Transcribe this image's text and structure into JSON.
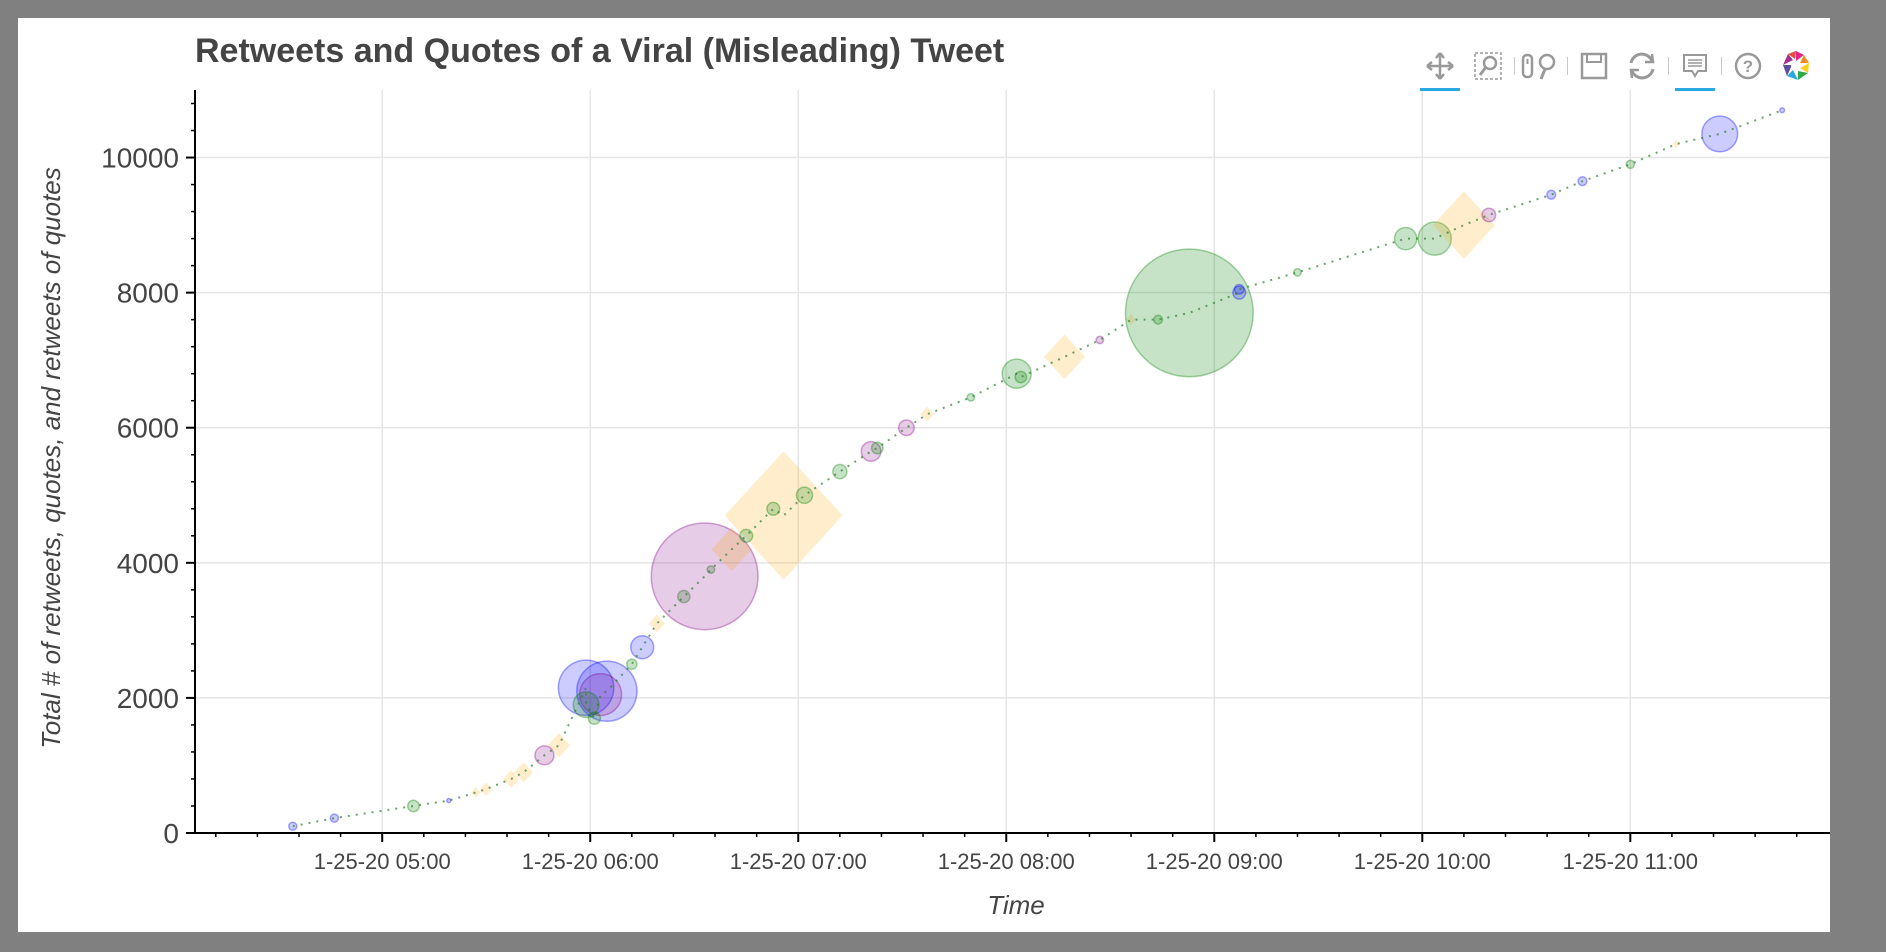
{
  "chart_data": {
    "type": "scatter",
    "title": "Retweets and Quotes of a Viral (Misleading) Tweet",
    "xlabel": "Time",
    "ylabel": "Total # of retweets, quotes, and retweets of quotes",
    "x_unit": "hours",
    "xlim": [
      4.1,
      11.96
    ],
    "ylim": [
      0,
      11000
    ],
    "x_ticks": [
      {
        "value": 5,
        "label": "1-25-20 05:00"
      },
      {
        "value": 6,
        "label": "1-25-20 06:00"
      },
      {
        "value": 7,
        "label": "1-25-20 07:00"
      },
      {
        "value": 8,
        "label": "1-25-20 08:00"
      },
      {
        "value": 9,
        "label": "1-25-20 09:00"
      },
      {
        "value": 10,
        "label": "1-25-20 10:00"
      },
      {
        "value": 11,
        "label": "1-25-20 11:00"
      }
    ],
    "y_ticks": [
      {
        "value": 0,
        "label": "0"
      },
      {
        "value": 2000,
        "label": "2000"
      },
      {
        "value": 4000,
        "label": "4000"
      },
      {
        "value": 6000,
        "label": "6000"
      },
      {
        "value": 8000,
        "label": "8000"
      },
      {
        "value": 10000,
        "label": "10000"
      }
    ],
    "grid": true,
    "colors": {
      "blue": "#0000ff",
      "green": "#008000",
      "orange": "#ffa500",
      "purple": "#800080"
    },
    "points": [
      {
        "shape": "circle",
        "color": "blue",
        "x": 4.57,
        "y": 100,
        "size": 120
      },
      {
        "shape": "circle",
        "color": "blue",
        "x": 4.77,
        "y": 220,
        "size": 120
      },
      {
        "shape": "circle",
        "color": "green",
        "x": 5.15,
        "y": 400,
        "size": 170
      },
      {
        "shape": "circle",
        "color": "blue",
        "x": 5.32,
        "y": 480,
        "size": 60
      },
      {
        "shape": "diamond",
        "color": "orange",
        "x": 5.45,
        "y": 600,
        "size": 150
      },
      {
        "shape": "diamond",
        "color": "orange",
        "x": 5.5,
        "y": 650,
        "size": 200
      },
      {
        "shape": "diamond",
        "color": "orange",
        "x": 5.62,
        "y": 800,
        "size": 260
      },
      {
        "shape": "diamond",
        "color": "orange",
        "x": 5.68,
        "y": 900,
        "size": 300
      },
      {
        "shape": "circle",
        "color": "purple",
        "x": 5.78,
        "y": 1150,
        "size": 280
      },
      {
        "shape": "diamond",
        "color": "orange",
        "x": 5.85,
        "y": 1300,
        "size": 360
      },
      {
        "shape": "circle",
        "color": "blue",
        "x": 6.08,
        "y": 2100,
        "size": 890
      },
      {
        "shape": "circle",
        "color": "blue",
        "x": 5.98,
        "y": 2150,
        "size": 820
      },
      {
        "shape": "circle",
        "color": "purple",
        "x": 6.05,
        "y": 2050,
        "size": 620
      },
      {
        "shape": "circle",
        "color": "green",
        "x": 5.98,
        "y": 1900,
        "size": 380
      },
      {
        "shape": "circle",
        "color": "green",
        "x": 6.02,
        "y": 1700,
        "size": 180
      },
      {
        "shape": "circle",
        "color": "blue",
        "x": 6.25,
        "y": 2750,
        "size": 340
      },
      {
        "shape": "circle",
        "color": "green",
        "x": 6.2,
        "y": 2500,
        "size": 150
      },
      {
        "shape": "diamond",
        "color": "orange",
        "x": 6.32,
        "y": 3100,
        "size": 260
      },
      {
        "shape": "circle",
        "color": "green",
        "x": 6.45,
        "y": 3500,
        "size": 180
      },
      {
        "shape": "circle",
        "color": "green",
        "x": 6.58,
        "y": 3900,
        "size": 110
      },
      {
        "shape": "circle",
        "color": "purple",
        "x": 6.55,
        "y": 3800,
        "size": 1580
      },
      {
        "shape": "diamond",
        "color": "orange",
        "x": 6.68,
        "y": 4200,
        "size": 650
      },
      {
        "shape": "diamond",
        "color": "orange",
        "x": 6.93,
        "y": 4700,
        "size": 1900
      },
      {
        "shape": "circle",
        "color": "green",
        "x": 6.75,
        "y": 4400,
        "size": 190
      },
      {
        "shape": "circle",
        "color": "green",
        "x": 6.88,
        "y": 4800,
        "size": 190
      },
      {
        "shape": "circle",
        "color": "green",
        "x": 7.03,
        "y": 5000,
        "size": 240
      },
      {
        "shape": "circle",
        "color": "green",
        "x": 7.2,
        "y": 5350,
        "size": 210
      },
      {
        "shape": "circle",
        "color": "purple",
        "x": 7.35,
        "y": 5650,
        "size": 290
      },
      {
        "shape": "circle",
        "color": "green",
        "x": 7.38,
        "y": 5700,
        "size": 170
      },
      {
        "shape": "circle",
        "color": "purple",
        "x": 7.52,
        "y": 6000,
        "size": 230
      },
      {
        "shape": "diamond",
        "color": "orange",
        "x": 7.62,
        "y": 6200,
        "size": 220
      },
      {
        "shape": "circle",
        "color": "green",
        "x": 7.83,
        "y": 6450,
        "size": 110
      },
      {
        "shape": "circle",
        "color": "green",
        "x": 8.05,
        "y": 6800,
        "size": 430
      },
      {
        "shape": "circle",
        "color": "green",
        "x": 8.07,
        "y": 6750,
        "size": 170
      },
      {
        "shape": "diamond",
        "color": "orange",
        "x": 8.28,
        "y": 7050,
        "size": 660
      },
      {
        "shape": "circle",
        "color": "purple",
        "x": 8.45,
        "y": 7300,
        "size": 110
      },
      {
        "shape": "diamond",
        "color": "orange",
        "x": 8.6,
        "y": 7600,
        "size": 160
      },
      {
        "shape": "circle",
        "color": "green",
        "x": 8.73,
        "y": 7600,
        "size": 130
      },
      {
        "shape": "circle",
        "color": "green",
        "x": 8.88,
        "y": 7700,
        "size": 1890
      },
      {
        "shape": "circle",
        "color": "blue",
        "x": 9.12,
        "y": 8000,
        "size": 190
      },
      {
        "shape": "circle",
        "color": "blue",
        "x": 9.12,
        "y": 8050,
        "size": 140
      },
      {
        "shape": "circle",
        "color": "green",
        "x": 9.4,
        "y": 8300,
        "size": 110
      },
      {
        "shape": "circle",
        "color": "green",
        "x": 9.92,
        "y": 8800,
        "size": 330
      },
      {
        "shape": "circle",
        "color": "green",
        "x": 10.06,
        "y": 8800,
        "size": 490
      },
      {
        "shape": "diamond",
        "color": "orange",
        "x": 10.2,
        "y": 9000,
        "size": 1000
      },
      {
        "shape": "circle",
        "color": "purple",
        "x": 10.32,
        "y": 9150,
        "size": 200
      },
      {
        "shape": "circle",
        "color": "blue",
        "x": 10.62,
        "y": 9450,
        "size": 130
      },
      {
        "shape": "circle",
        "color": "blue",
        "x": 10.77,
        "y": 9650,
        "size": 130
      },
      {
        "shape": "circle",
        "color": "green",
        "x": 11.0,
        "y": 9900,
        "size": 120
      },
      {
        "shape": "circle",
        "color": "blue",
        "x": 11.43,
        "y": 10350,
        "size": 530
      },
      {
        "shape": "diamond",
        "color": "orange",
        "x": 11.22,
        "y": 10200,
        "size": 120
      },
      {
        "shape": "circle",
        "color": "blue",
        "x": 11.73,
        "y": 10700,
        "size": 70
      }
    ]
  },
  "toolbar": {
    "tools": [
      {
        "name": "pan-tool",
        "icon": "pan-icon",
        "active": true
      },
      {
        "name": "box-zoom-tool",
        "icon": "box-zoom-icon",
        "active": false
      },
      {
        "name": "wheel-zoom-tool",
        "icon": "wheel-zoom-icon",
        "active": false
      },
      {
        "name": "save-tool",
        "icon": "save-icon",
        "active": false
      },
      {
        "name": "reset-tool",
        "icon": "reset-icon",
        "active": false
      },
      {
        "name": "hover-tool",
        "icon": "hover-icon",
        "active": true
      },
      {
        "name": "help-tool",
        "icon": "help-icon",
        "active": false
      },
      {
        "name": "bokeh-logo",
        "icon": "bokeh-logo-icon",
        "active": false
      }
    ]
  }
}
